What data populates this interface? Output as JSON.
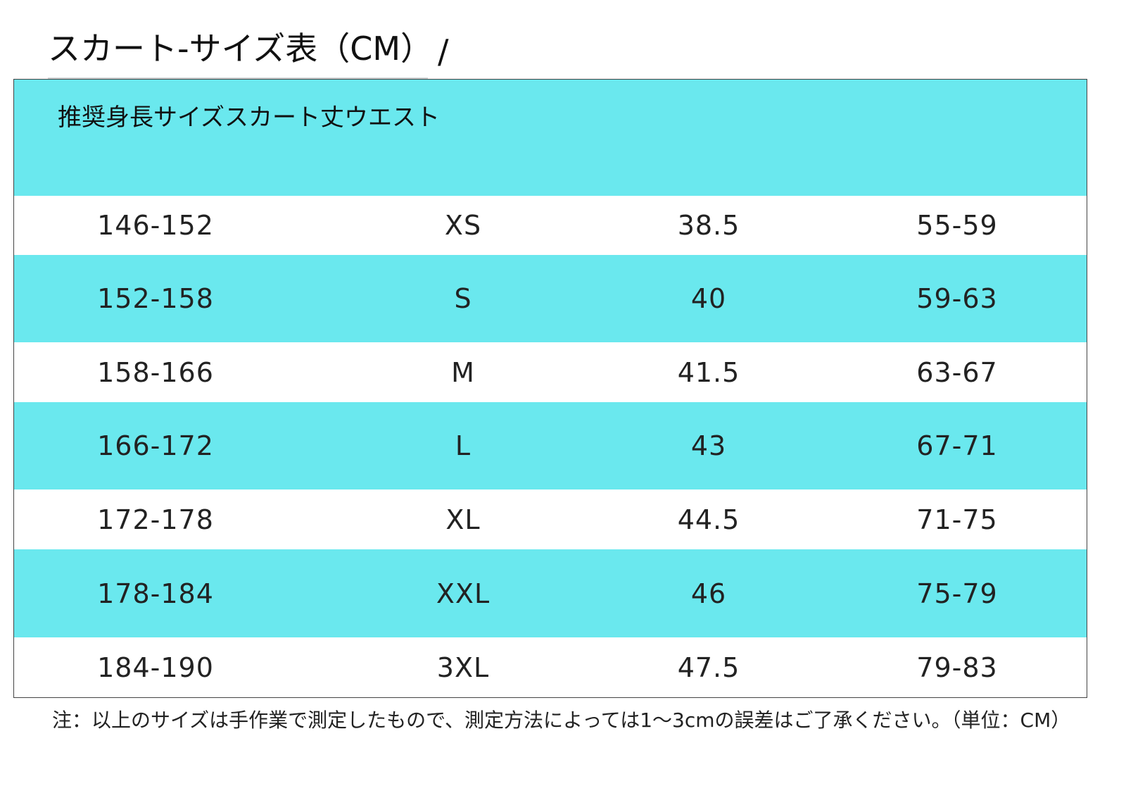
{
  "title": "スカート-サイズ表（CM）",
  "title_suffix": "/",
  "colors": {
    "band": "#6ae8ee",
    "white": "#ffffff",
    "text": "#222222"
  },
  "table": {
    "header": "推奨身長サイズスカート丈ウエスト",
    "rows": [
      [
        "146-152",
        "XS",
        "38.5",
        "55-59"
      ],
      [
        "152-158",
        "S",
        "40",
        "59-63"
      ],
      [
        "158-166",
        "M",
        "41.5",
        "63-67"
      ],
      [
        "166-172",
        "L",
        "43",
        "67-71"
      ],
      [
        "172-178",
        "XL",
        "44.5",
        "71-75"
      ],
      [
        "178-184",
        "XXL",
        "46",
        "75-79"
      ],
      [
        "184-190",
        "3XL",
        "47.5",
        "79-83"
      ]
    ]
  },
  "note": "注：以上のサイズは手作業で測定したもので、測定方法によっては1～3cmの誤差はご了承ください。（単位：CM）"
}
